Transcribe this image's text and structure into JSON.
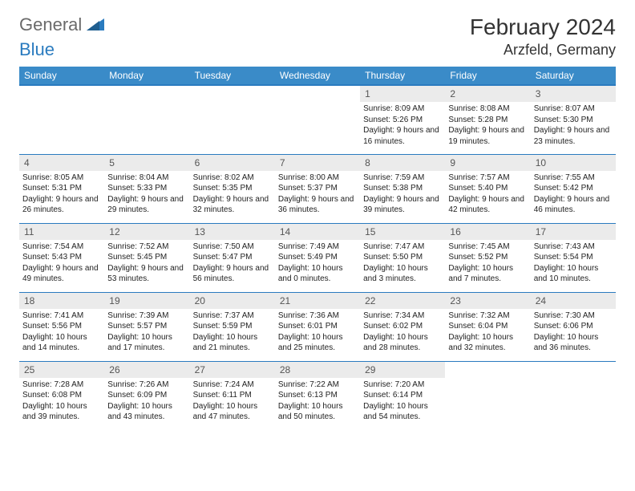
{
  "logo": {
    "general": "General",
    "blue": "Blue"
  },
  "title": "February 2024",
  "location": "Arzfeld, Germany",
  "headers": [
    "Sunday",
    "Monday",
    "Tuesday",
    "Wednesday",
    "Thursday",
    "Friday",
    "Saturday"
  ],
  "colors": {
    "header_bg": "#3a8bc8",
    "border": "#2a7bbf",
    "daynum_bg": "#ebebeb",
    "logo_gray": "#6a6a6a",
    "logo_blue": "#2a7bbf"
  },
  "weeks": [
    [
      {
        "blank": true
      },
      {
        "blank": true
      },
      {
        "blank": true
      },
      {
        "blank": true
      },
      {
        "n": "1",
        "sr": "8:09 AM",
        "ss": "5:26 PM",
        "dl": "Daylight: 9 hours and 16 minutes."
      },
      {
        "n": "2",
        "sr": "8:08 AM",
        "ss": "5:28 PM",
        "dl": "Daylight: 9 hours and 19 minutes."
      },
      {
        "n": "3",
        "sr": "8:07 AM",
        "ss": "5:30 PM",
        "dl": "Daylight: 9 hours and 23 minutes."
      }
    ],
    [
      {
        "n": "4",
        "sr": "8:05 AM",
        "ss": "5:31 PM",
        "dl": "Daylight: 9 hours and 26 minutes."
      },
      {
        "n": "5",
        "sr": "8:04 AM",
        "ss": "5:33 PM",
        "dl": "Daylight: 9 hours and 29 minutes."
      },
      {
        "n": "6",
        "sr": "8:02 AM",
        "ss": "5:35 PM",
        "dl": "Daylight: 9 hours and 32 minutes."
      },
      {
        "n": "7",
        "sr": "8:00 AM",
        "ss": "5:37 PM",
        "dl": "Daylight: 9 hours and 36 minutes."
      },
      {
        "n": "8",
        "sr": "7:59 AM",
        "ss": "5:38 PM",
        "dl": "Daylight: 9 hours and 39 minutes."
      },
      {
        "n": "9",
        "sr": "7:57 AM",
        "ss": "5:40 PM",
        "dl": "Daylight: 9 hours and 42 minutes."
      },
      {
        "n": "10",
        "sr": "7:55 AM",
        "ss": "5:42 PM",
        "dl": "Daylight: 9 hours and 46 minutes."
      }
    ],
    [
      {
        "n": "11",
        "sr": "7:54 AM",
        "ss": "5:43 PM",
        "dl": "Daylight: 9 hours and 49 minutes."
      },
      {
        "n": "12",
        "sr": "7:52 AM",
        "ss": "5:45 PM",
        "dl": "Daylight: 9 hours and 53 minutes."
      },
      {
        "n": "13",
        "sr": "7:50 AM",
        "ss": "5:47 PM",
        "dl": "Daylight: 9 hours and 56 minutes."
      },
      {
        "n": "14",
        "sr": "7:49 AM",
        "ss": "5:49 PM",
        "dl": "Daylight: 10 hours and 0 minutes."
      },
      {
        "n": "15",
        "sr": "7:47 AM",
        "ss": "5:50 PM",
        "dl": "Daylight: 10 hours and 3 minutes."
      },
      {
        "n": "16",
        "sr": "7:45 AM",
        "ss": "5:52 PM",
        "dl": "Daylight: 10 hours and 7 minutes."
      },
      {
        "n": "17",
        "sr": "7:43 AM",
        "ss": "5:54 PM",
        "dl": "Daylight: 10 hours and 10 minutes."
      }
    ],
    [
      {
        "n": "18",
        "sr": "7:41 AM",
        "ss": "5:56 PM",
        "dl": "Daylight: 10 hours and 14 minutes."
      },
      {
        "n": "19",
        "sr": "7:39 AM",
        "ss": "5:57 PM",
        "dl": "Daylight: 10 hours and 17 minutes."
      },
      {
        "n": "20",
        "sr": "7:37 AM",
        "ss": "5:59 PM",
        "dl": "Daylight: 10 hours and 21 minutes."
      },
      {
        "n": "21",
        "sr": "7:36 AM",
        "ss": "6:01 PM",
        "dl": "Daylight: 10 hours and 25 minutes."
      },
      {
        "n": "22",
        "sr": "7:34 AM",
        "ss": "6:02 PM",
        "dl": "Daylight: 10 hours and 28 minutes."
      },
      {
        "n": "23",
        "sr": "7:32 AM",
        "ss": "6:04 PM",
        "dl": "Daylight: 10 hours and 32 minutes."
      },
      {
        "n": "24",
        "sr": "7:30 AM",
        "ss": "6:06 PM",
        "dl": "Daylight: 10 hours and 36 minutes."
      }
    ],
    [
      {
        "n": "25",
        "sr": "7:28 AM",
        "ss": "6:08 PM",
        "dl": "Daylight: 10 hours and 39 minutes."
      },
      {
        "n": "26",
        "sr": "7:26 AM",
        "ss": "6:09 PM",
        "dl": "Daylight: 10 hours and 43 minutes."
      },
      {
        "n": "27",
        "sr": "7:24 AM",
        "ss": "6:11 PM",
        "dl": "Daylight: 10 hours and 47 minutes."
      },
      {
        "n": "28",
        "sr": "7:22 AM",
        "ss": "6:13 PM",
        "dl": "Daylight: 10 hours and 50 minutes."
      },
      {
        "n": "29",
        "sr": "7:20 AM",
        "ss": "6:14 PM",
        "dl": "Daylight: 10 hours and 54 minutes."
      },
      {
        "blank": true
      },
      {
        "blank": true
      }
    ]
  ]
}
